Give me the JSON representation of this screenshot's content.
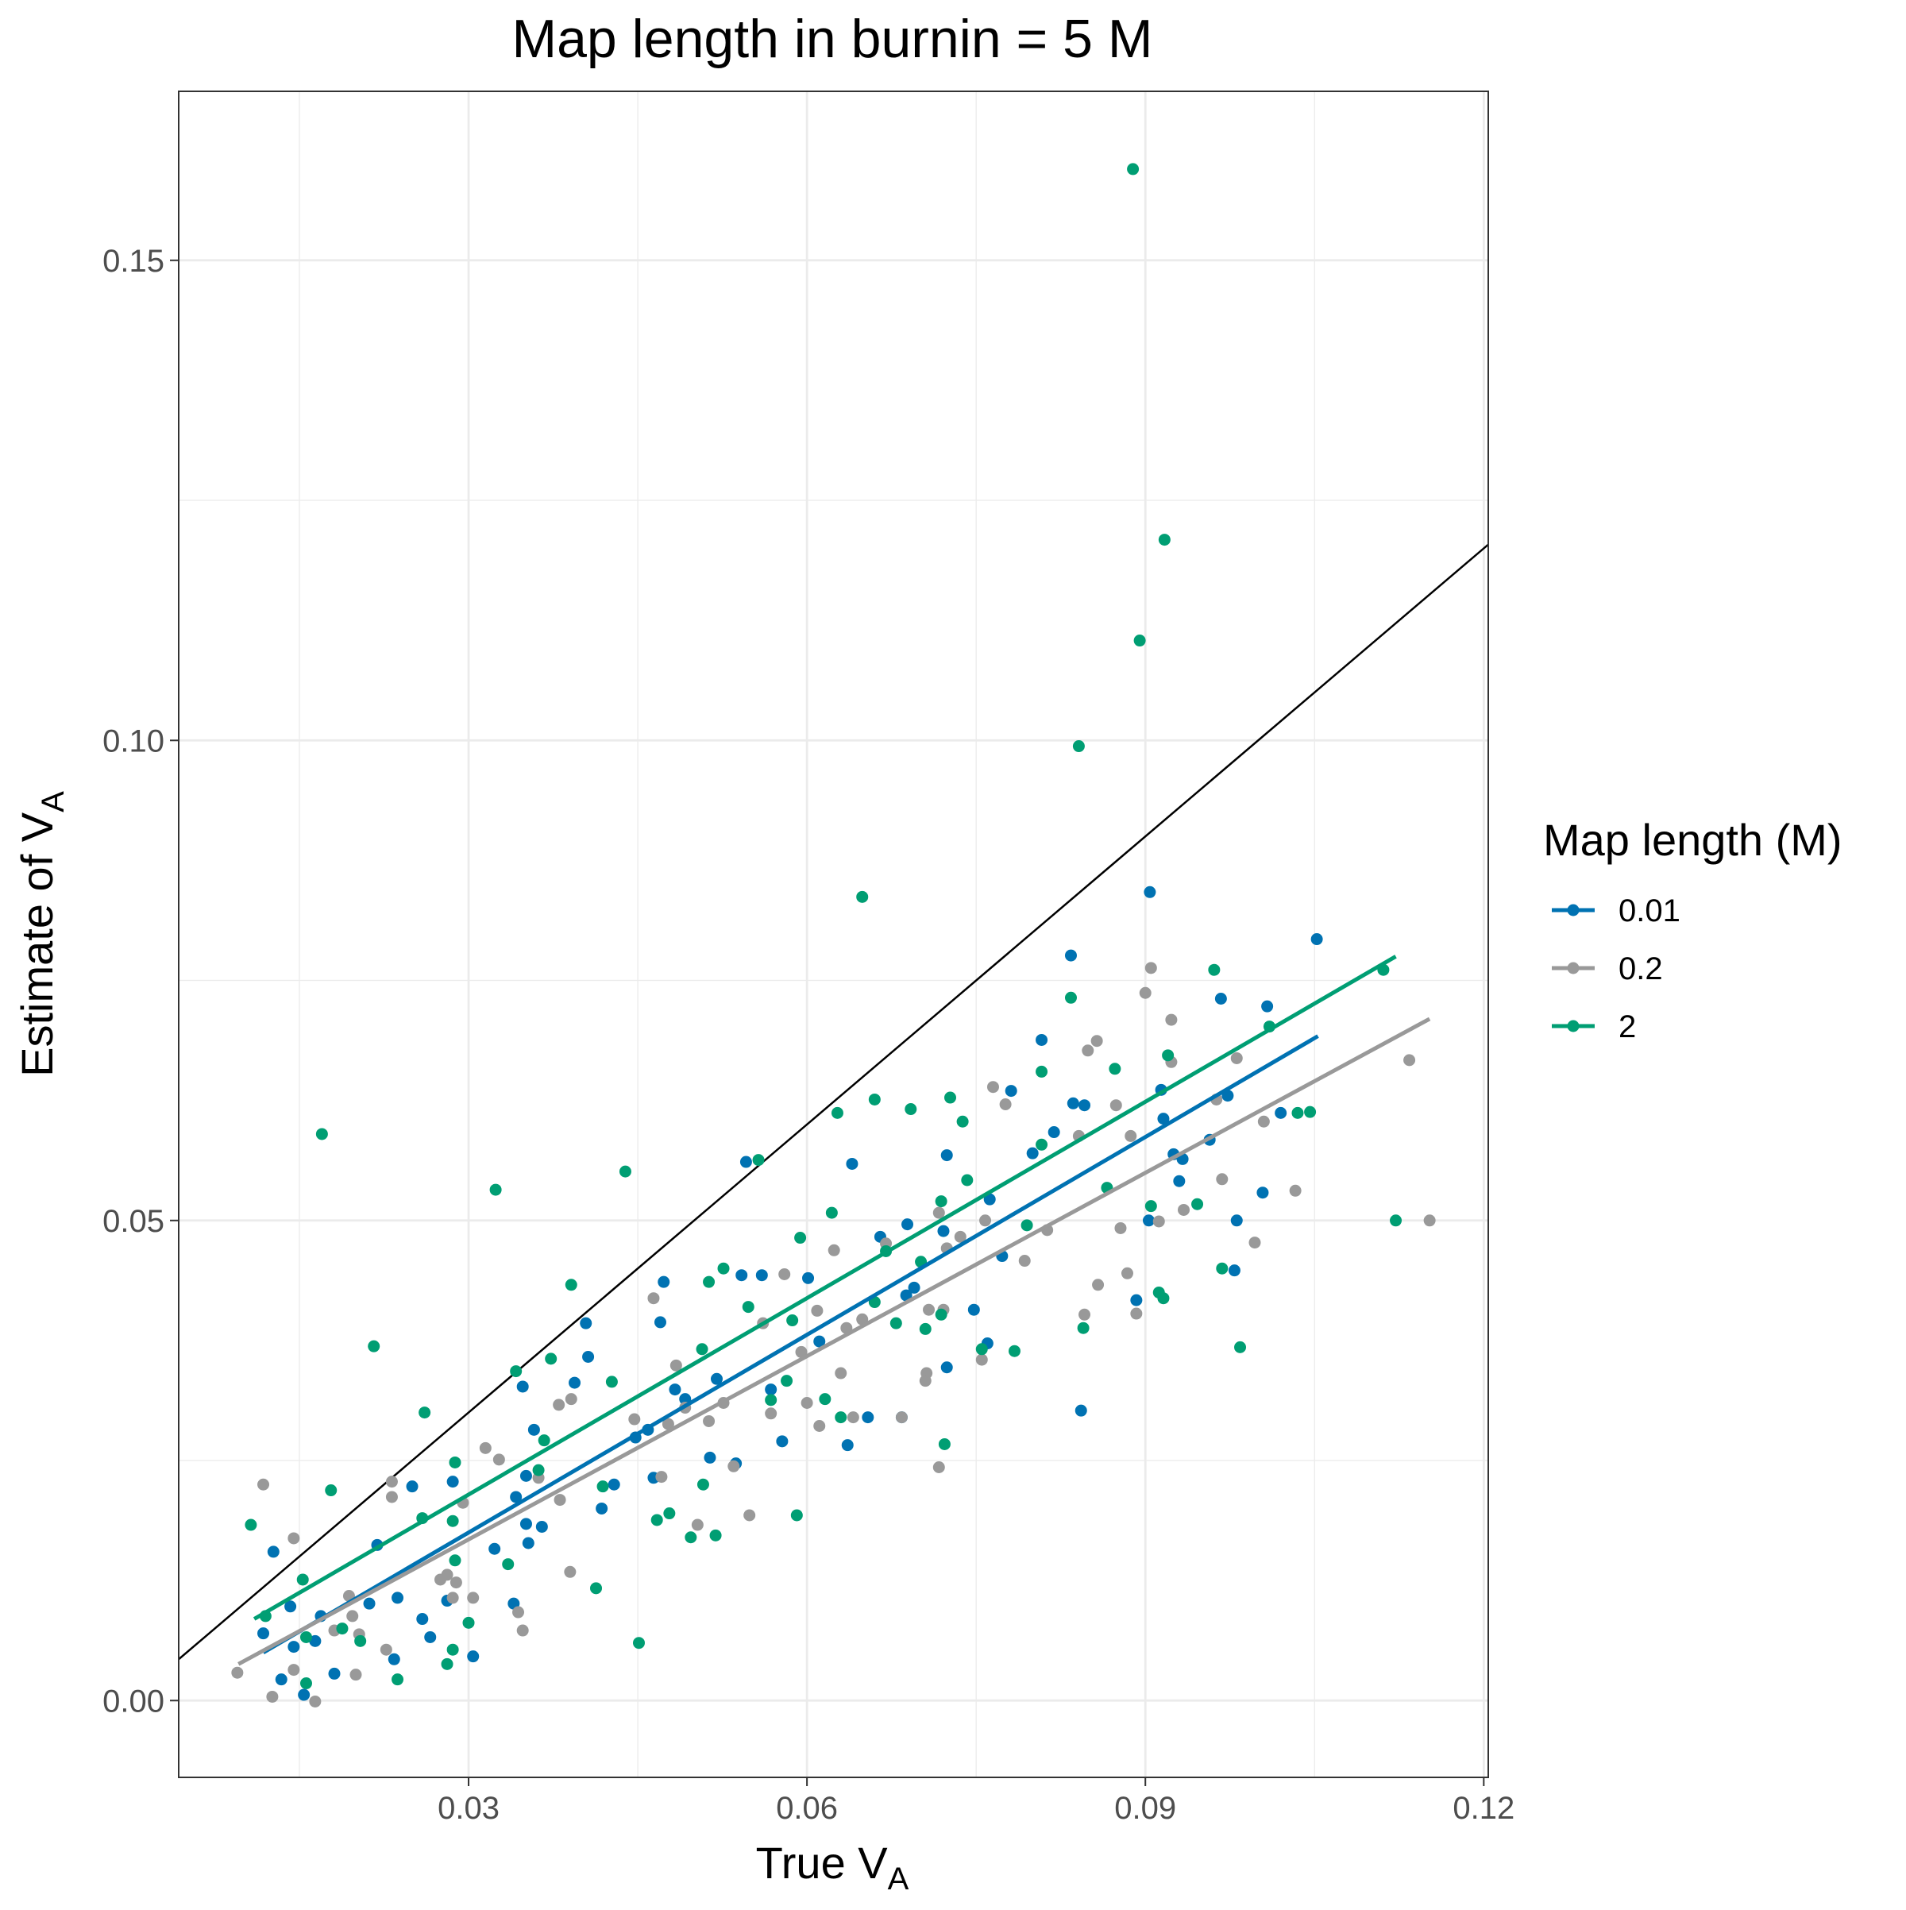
{
  "chart_data": {
    "type": "scatter",
    "title": "Map length in burnin = 5 M",
    "x_label": {
      "text": "True V",
      "subscript": "A"
    },
    "y_label": {
      "text": "Estimate of V",
      "subscript": "A"
    },
    "xlim": [
      0.0043,
      0.1204
    ],
    "ylim": [
      -0.008,
      0.1676
    ],
    "xticks": [
      0.03,
      0.06,
      0.09,
      0.12
    ],
    "yticks": [
      {
        "value": 0,
        "label": "0.00"
      },
      0.05,
      {
        "value": 0.1,
        "label": "0.10"
      },
      0.15
    ],
    "x_minor_ticks": [
      0.015,
      0.045,
      0.075,
      0.105
    ],
    "y_minor_ticks": [
      0.025,
      0.075,
      0.125
    ],
    "grid": true,
    "reference_line": {
      "slope": 1,
      "intercept": 0,
      "color": "#000000"
    },
    "legend": {
      "title": "Map length (M)",
      "position": "right"
    },
    "series": [
      {
        "name": "0.01",
        "color": "#0072B2",
        "fit_x": [
          0.0118,
          0.1053
        ],
        "fit_y": [
          0.005,
          0.0692
        ],
        "x": [
          0.0118,
          0.0127,
          0.0134,
          0.0142,
          0.0145,
          0.0154,
          0.0164,
          0.0169,
          0.0181,
          0.0212,
          0.0219,
          0.0234,
          0.0237,
          0.025,
          0.0259,
          0.0266,
          0.0281,
          0.0286,
          0.0304,
          0.0323,
          0.034,
          0.0342,
          0.0348,
          0.0351,
          0.0351,
          0.0353,
          0.0358,
          0.0365,
          0.0394,
          0.0404,
          0.0406,
          0.0418,
          0.0429,
          0.0448,
          0.0459,
          0.0464,
          0.047,
          0.0473,
          0.0483,
          0.0492,
          0.0514,
          0.052,
          0.0537,
          0.0542,
          0.0546,
          0.056,
          0.0568,
          0.0578,
          0.0601,
          0.0611,
          0.0636,
          0.064,
          0.0654,
          0.0665,
          0.0684,
          0.0688,
          0.0689,
          0.0695,
          0.0721,
          0.0724,
          0.0724,
          0.0748,
          0.076,
          0.0762,
          0.0773,
          0.0781,
          0.08,
          0.0808,
          0.0819,
          0.0834,
          0.0836,
          0.0843,
          0.0846,
          0.0892,
          0.0904,
          0.0903,
          0.0914,
          0.0916,
          0.0925,
          0.093,
          0.0933,
          0.0957,
          0.0967,
          0.0973,
          0.0981,
          0.0979,
          0.1004,
          0.1008,
          0.102,
          0.1052
        ],
        "values": [
          0.007,
          0.0155,
          0.0022,
          0.0098,
          0.0056,
          0.0006,
          0.0062,
          0.0088,
          0.0028,
          0.0101,
          0.0162,
          0.0043,
          0.0107,
          0.0223,
          0.0085,
          0.0066,
          0.0104,
          0.0228,
          0.0046,
          0.0158,
          0.0101,
          0.0212,
          0.0327,
          0.0234,
          0.0184,
          0.0164,
          0.0282,
          0.0181,
          0.0331,
          0.0393,
          0.0358,
          0.02,
          0.0225,
          0.0274,
          0.0282,
          0.0232,
          0.0394,
          0.0436,
          0.0324,
          0.0314,
          0.0253,
          0.0335,
          0.0247,
          0.0443,
          0.0561,
          0.0443,
          0.0324,
          0.027,
          0.044,
          0.0374,
          0.0266,
          0.0559,
          0.0295,
          0.0483,
          0.0295,
          0.0422,
          0.0496,
          0.043,
          0.0489,
          0.0568,
          0.0347,
          0.0407,
          0.0372,
          0.0522,
          0.0463,
          0.0635,
          0.057,
          0.0688,
          0.0592,
          0.0776,
          0.0622,
          0.0302,
          0.062,
          0.0417,
          0.0842,
          0.05,
          0.0636,
          0.0606,
          0.0569,
          0.0541,
          0.0564,
          0.0584,
          0.0731,
          0.063,
          0.05,
          0.0448,
          0.0529,
          0.0723,
          0.0612,
          0.0793
        ]
      },
      {
        "name": "0.2",
        "color": "#999999",
        "fit_x": [
          0.0096,
          0.1152
        ],
        "fit_y": [
          0.0038,
          0.071
        ],
        "x": [
          0.0095,
          0.0118,
          0.0126,
          0.0145,
          0.0145,
          0.0164,
          0.0181,
          0.0194,
          0.0197,
          0.02,
          0.0203,
          0.0227,
          0.0232,
          0.0232,
          0.0275,
          0.0281,
          0.0286,
          0.0289,
          0.0295,
          0.0304,
          0.0315,
          0.0327,
          0.0344,
          0.0348,
          0.0362,
          0.038,
          0.0381,
          0.0391,
          0.039,
          0.0447,
          0.0464,
          0.0471,
          0.0477,
          0.0484,
          0.0492,
          0.0503,
          0.0513,
          0.0526,
          0.0535,
          0.0549,
          0.0561,
          0.0568,
          0.058,
          0.0595,
          0.06,
          0.0609,
          0.0611,
          0.0624,
          0.063,
          0.0635,
          0.0641,
          0.0649,
          0.067,
          0.0684,
          0.0706,
          0.0705,
          0.0708,
          0.0717,
          0.0717,
          0.0721,
          0.0724,
          0.0736,
          0.0758,
          0.0755,
          0.0765,
          0.0776,
          0.0793,
          0.0813,
          0.0841,
          0.0846,
          0.0849,
          0.0857,
          0.0858,
          0.0874,
          0.0878,
          0.0884,
          0.0887,
          0.0892,
          0.09,
          0.0905,
          0.0912,
          0.0923,
          0.0923,
          0.0934,
          0.0963,
          0.0968,
          0.0981,
          0.0997,
          0.1005,
          0.1033,
          0.1134,
          0.1152
        ],
        "values": [
          0.0029,
          0.0225,
          0.0004,
          0.0169,
          0.0032,
          -0.0001,
          0.0073,
          0.0109,
          0.0088,
          0.0027,
          0.0069,
          0.0053,
          0.0228,
          0.0212,
          0.0126,
          0.0131,
          0.0107,
          0.0123,
          0.0206,
          0.0107,
          0.0263,
          0.0251,
          0.0092,
          0.0073,
          0.0232,
          0.0308,
          0.0209,
          0.0314,
          0.0134,
          0.0293,
          0.0419,
          0.0233,
          0.0288,
          0.0349,
          0.0305,
          0.0183,
          0.0291,
          0.031,
          0.0244,
          0.0193,
          0.0393,
          0.0299,
          0.0444,
          0.0363,
          0.031,
          0.0406,
          0.0286,
          0.0469,
          0.0341,
          0.0388,
          0.0295,
          0.0397,
          0.0476,
          0.0295,
          0.0341,
          0.0333,
          0.0407,
          0.0243,
          0.0508,
          0.0407,
          0.0471,
          0.0483,
          0.05,
          0.0355,
          0.0639,
          0.0621,
          0.0458,
          0.049,
          0.0588,
          0.0402,
          0.0677,
          0.0687,
          0.0433,
          0.062,
          0.0492,
          0.0445,
          0.0588,
          0.0403,
          0.0737,
          0.0763,
          0.0499,
          0.0709,
          0.0665,
          0.0511,
          0.0626,
          0.0543,
          0.0669,
          0.0477,
          0.0603,
          0.0531,
          0.0667,
          0.05
        ]
      },
      {
        "name": "2",
        "color": "#009E73",
        "fit_x": [
          0.011,
          0.1122
        ],
        "fit_y": [
          0.0085,
          0.0775
        ],
        "x": [
          0.0107,
          0.012,
          0.0153,
          0.0156,
          0.0156,
          0.017,
          0.0178,
          0.0188,
          0.0204,
          0.0216,
          0.0259,
          0.0261,
          0.0237,
          0.0281,
          0.0286,
          0.0288,
          0.0288,
          0.0286,
          0.03,
          0.0324,
          0.0335,
          0.0342,
          0.0362,
          0.0367,
          0.0373,
          0.0391,
          0.0413,
          0.0419,
          0.0427,
          0.0439,
          0.0451,
          0.0467,
          0.0478,
          0.0497,
          0.0507,
          0.0508,
          0.0513,
          0.0519,
          0.0526,
          0.0548,
          0.0557,
          0.0568,
          0.0582,
          0.0587,
          0.0591,
          0.0594,
          0.0616,
          0.0622,
          0.0627,
          0.063,
          0.0649,
          0.066,
          0.066,
          0.067,
          0.0679,
          0.0692,
          0.0701,
          0.0705,
          0.0719,
          0.0719,
          0.0722,
          0.0727,
          0.0738,
          0.0742,
          0.0755,
          0.0784,
          0.0795,
          0.0808,
          0.0808,
          0.0834,
          0.0841,
          0.0845,
          0.0866,
          0.0873,
          0.0889,
          0.0895,
          0.0905,
          0.0912,
          0.0917,
          0.0916,
          0.092,
          0.0946,
          0.0961,
          0.0968,
          0.0984,
          0.101,
          0.1035,
          0.1046,
          0.1111,
          0.1122
        ],
        "values": [
          0.0183,
          0.0088,
          0.0126,
          0.0066,
          0.0018,
          0.059,
          0.0219,
          0.0075,
          0.0062,
          0.0369,
          0.019,
          0.03,
          0.0022,
          0.0038,
          0.0053,
          0.0248,
          0.0146,
          0.0187,
          0.0081,
          0.0532,
          0.0142,
          0.0343,
          0.024,
          0.0271,
          0.0356,
          0.0433,
          0.0117,
          0.0223,
          0.0332,
          0.0551,
          0.006,
          0.0188,
          0.0195,
          0.017,
          0.0366,
          0.0225,
          0.0436,
          0.0172,
          0.045,
          0.041,
          0.0563,
          0.0313,
          0.0333,
          0.0396,
          0.0193,
          0.0482,
          0.0314,
          0.0508,
          0.0612,
          0.0295,
          0.0837,
          0.0626,
          0.0415,
          0.0468,
          0.0393,
          0.0616,
          0.0457,
          0.0387,
          0.052,
          0.0402,
          0.0267,
          0.0628,
          0.0603,
          0.0542,
          0.0366,
          0.0364,
          0.0495,
          0.0579,
          0.0655,
          0.0732,
          0.0994,
          0.0388,
          0.0534,
          0.0658,
          0.1595,
          0.1104,
          0.0515,
          0.0425,
          0.1209,
          0.0419,
          0.0672,
          0.0517,
          0.0761,
          0.045,
          0.0368,
          0.0702,
          0.0612,
          0.0613,
          0.0761,
          0.05
        ]
      }
    ]
  }
}
